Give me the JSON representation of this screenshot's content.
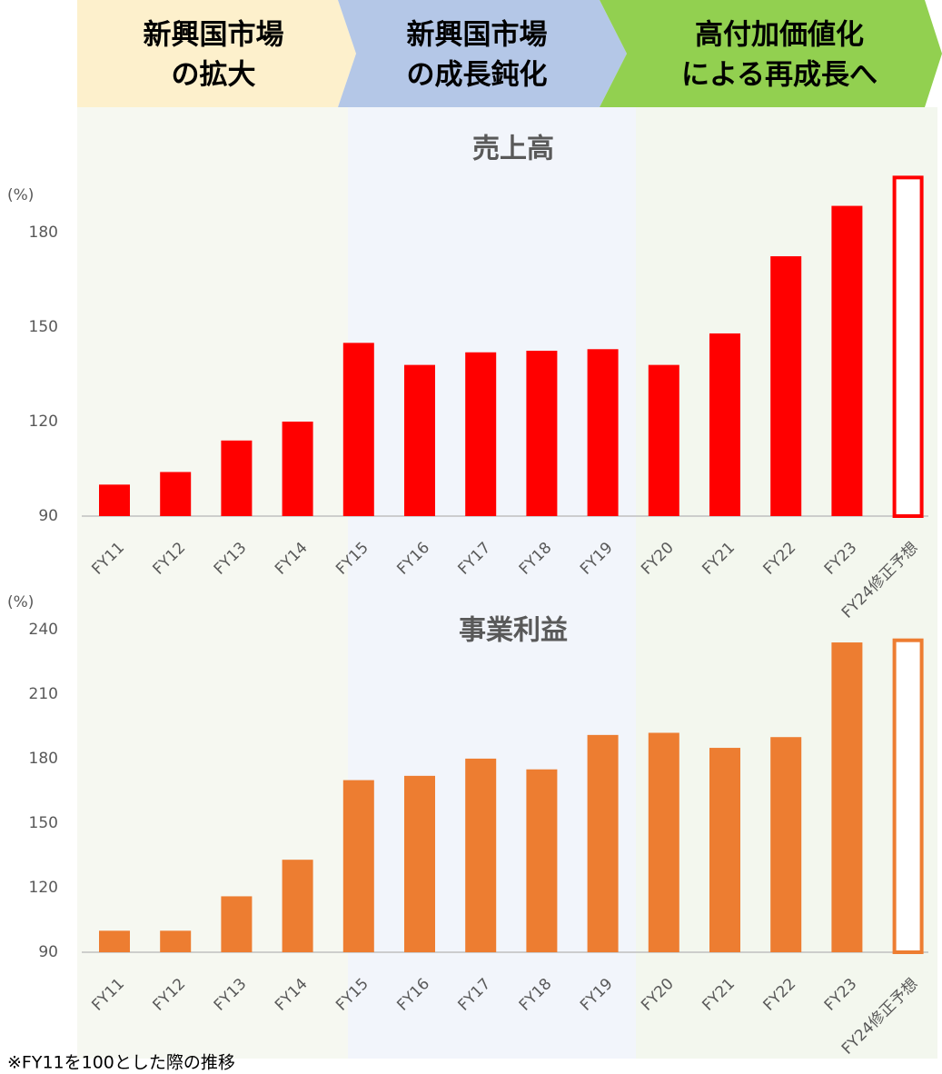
{
  "header": {
    "phases": [
      {
        "lines": [
          "新興国市場",
          "の拡大"
        ]
      },
      {
        "lines": [
          "新興国市場",
          "の成長鈍化"
        ]
      },
      {
        "lines": [
          "高付加価値化",
          "による再成長へ"
        ]
      }
    ]
  },
  "chart_data": [
    {
      "type": "bar",
      "title": "売上高",
      "y_label": "(%)",
      "categories": [
        "FY11",
        "FY12",
        "FY13",
        "FY14",
        "FY15",
        "FY16",
        "FY17",
        "FY18",
        "FY19",
        "FY20",
        "FY21",
        "FY22",
        "FY23",
        "FY24修正予想"
      ],
      "values": [
        100,
        104,
        114,
        120,
        145,
        138,
        142,
        142.5,
        143,
        138,
        148,
        172.5,
        188.5,
        197.5
      ],
      "color": "#ff0000",
      "last_outlined": true,
      "ylim": [
        90,
        200
      ],
      "yticks": [
        90,
        120,
        150,
        180
      ]
    },
    {
      "type": "bar",
      "title": "事業利益",
      "y_label": "(%)",
      "categories": [
        "FY11",
        "FY12",
        "FY13",
        "FY14",
        "FY15",
        "FY16",
        "FY17",
        "FY18",
        "FY19",
        "FY20",
        "FY21",
        "FY22",
        "FY23",
        "FY24修正予想"
      ],
      "values": [
        100,
        100,
        116,
        133,
        170,
        172,
        180,
        175,
        191,
        192,
        185,
        190,
        234,
        235
      ],
      "color": "#ed7d31",
      "last_outlined": true,
      "ylim": [
        90,
        245
      ],
      "yticks": [
        90,
        120,
        150,
        180,
        210,
        240
      ]
    }
  ],
  "note": "※FY11を100とした際の推移"
}
